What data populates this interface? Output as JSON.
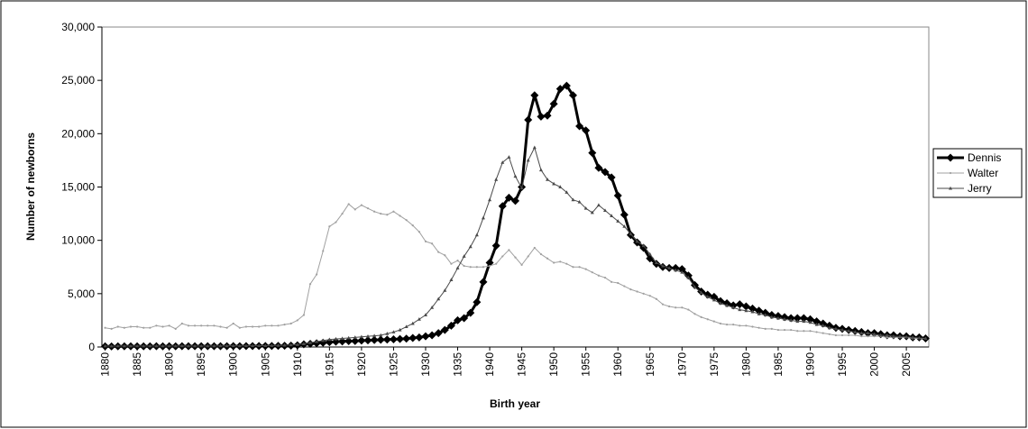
{
  "chart_data": {
    "type": "line",
    "x_label": "Birth year",
    "y_label": "Number of newborns",
    "x": [
      1880,
      1881,
      1882,
      1883,
      1884,
      1885,
      1886,
      1887,
      1888,
      1889,
      1890,
      1891,
      1892,
      1893,
      1894,
      1895,
      1896,
      1897,
      1898,
      1899,
      1900,
      1901,
      1902,
      1903,
      1904,
      1905,
      1906,
      1907,
      1908,
      1909,
      1910,
      1911,
      1912,
      1913,
      1914,
      1915,
      1916,
      1917,
      1918,
      1919,
      1920,
      1921,
      1922,
      1923,
      1924,
      1925,
      1926,
      1927,
      1928,
      1929,
      1930,
      1931,
      1932,
      1933,
      1934,
      1935,
      1936,
      1937,
      1938,
      1939,
      1940,
      1941,
      1942,
      1943,
      1944,
      1945,
      1946,
      1947,
      1948,
      1949,
      1950,
      1951,
      1952,
      1953,
      1954,
      1955,
      1956,
      1957,
      1958,
      1959,
      1960,
      1961,
      1962,
      1963,
      1964,
      1965,
      1966,
      1967,
      1968,
      1969,
      1970,
      1971,
      1972,
      1973,
      1974,
      1975,
      1976,
      1977,
      1978,
      1979,
      1980,
      1981,
      1982,
      1983,
      1984,
      1985,
      1986,
      1987,
      1988,
      1989,
      1990,
      1991,
      1992,
      1993,
      1994,
      1995,
      1996,
      1997,
      1998,
      1999,
      2000,
      2001,
      2002,
      2003,
      2004,
      2005,
      2006,
      2007,
      2008
    ],
    "xlim": [
      1879.5,
      2008.5
    ],
    "xticks": [
      1880,
      1885,
      1890,
      1895,
      1900,
      1905,
      1910,
      1915,
      1920,
      1925,
      1930,
      1935,
      1940,
      1945,
      1950,
      1955,
      1960,
      1965,
      1970,
      1975,
      1980,
      1985,
      1990,
      1995,
      2000,
      2005
    ],
    "ylim": [
      0,
      30000
    ],
    "yticks": [
      0,
      {
        "value": 5000,
        "label": "5,000"
      },
      {
        "value": 10000,
        "label": "10,000"
      },
      {
        "value": 15000,
        "label": "15,000"
      },
      {
        "value": 20000,
        "label": "20,000"
      },
      {
        "value": 25000,
        "label": "25,000"
      },
      {
        "value": 30000,
        "label": "30,000"
      }
    ],
    "grid": false,
    "legend": "right",
    "series": [
      {
        "name": "Dennis",
        "color": "#000000",
        "line_width": 3,
        "marker": "diamond",
        "values": [
          60,
          55,
          60,
          60,
          65,
          60,
          60,
          65,
          70,
          65,
          70,
          65,
          75,
          70,
          70,
          75,
          70,
          70,
          75,
          75,
          85,
          75,
          80,
          85,
          90,
          95,
          100,
          110,
          120,
          130,
          160,
          250,
          300,
          350,
          400,
          450,
          500,
          520,
          550,
          560,
          600,
          620,
          650,
          680,
          700,
          720,
          750,
          780,
          850,
          900,
          1000,
          1100,
          1300,
          1600,
          2000,
          2500,
          2700,
          3200,
          4200,
          6100,
          7900,
          9500,
          13200,
          14000,
          13700,
          15000,
          21300,
          23600,
          21600,
          21700,
          22800,
          24200,
          24500,
          23600,
          20700,
          20300,
          18200,
          16800,
          16400,
          15900,
          14200,
          12400,
          10500,
          9800,
          9300,
          8300,
          7800,
          7500,
          7400,
          7400,
          7300,
          6700,
          5800,
          5200,
          4900,
          4700,
          4300,
          4100,
          3900,
          4000,
          3800,
          3600,
          3400,
          3200,
          3000,
          2900,
          2800,
          2700,
          2700,
          2700,
          2600,
          2400,
          2200,
          2000,
          1800,
          1700,
          1600,
          1500,
          1400,
          1300,
          1300,
          1200,
          1100,
          1100,
          1000,
          1000,
          900,
          900,
          800
        ]
      },
      {
        "name": "Walter",
        "color": "#a0a0a0",
        "line_width": 1,
        "marker": "dot",
        "values": [
          1800,
          1700,
          1900,
          1800,
          1900,
          1900,
          1800,
          1800,
          2000,
          1900,
          2000,
          1700,
          2200,
          2000,
          2000,
          2000,
          2000,
          2000,
          1900,
          1800,
          2200,
          1800,
          1900,
          1900,
          1900,
          2000,
          2000,
          2000,
          2100,
          2200,
          2500,
          3000,
          5900,
          6800,
          9000,
          11300,
          11700,
          12500,
          13400,
          12900,
          13300,
          13000,
          12700,
          12500,
          12400,
          12700,
          12300,
          11900,
          11400,
          10800,
          9900,
          9700,
          8900,
          8600,
          7800,
          8100,
          7600,
          7500,
          7500,
          7500,
          7600,
          7800,
          8500,
          9100,
          8400,
          7700,
          8500,
          9300,
          8700,
          8300,
          7900,
          8000,
          7800,
          7500,
          7500,
          7300,
          7000,
          6700,
          6500,
          6100,
          6000,
          5700,
          5400,
          5200,
          5000,
          4800,
          4500,
          4000,
          3800,
          3700,
          3700,
          3500,
          3100,
          2800,
          2600,
          2400,
          2200,
          2100,
          2100,
          2000,
          2000,
          1900,
          1800,
          1700,
          1700,
          1600,
          1600,
          1600,
          1500,
          1500,
          1500,
          1400,
          1300,
          1200,
          1100,
          1100,
          1100,
          1100,
          1000,
          1000,
          1000,
          1000,
          900,
          900,
          900,
          900,
          800,
          800,
          800
        ]
      },
      {
        "name": "Jerry",
        "color": "#4a4a4a",
        "line_width": 1,
        "marker": "triangle",
        "values": [
          90,
          80,
          90,
          90,
          90,
          90,
          90,
          90,
          100,
          90,
          100,
          90,
          110,
          100,
          100,
          100,
          100,
          100,
          110,
          110,
          120,
          110,
          120,
          120,
          130,
          130,
          140,
          150,
          170,
          190,
          220,
          300,
          400,
          500,
          600,
          700,
          750,
          800,
          850,
          900,
          950,
          1000,
          1050,
          1100,
          1250,
          1400,
          1600,
          1900,
          2200,
          2600,
          3000,
          3700,
          4500,
          5300,
          6300,
          7400,
          8500,
          9400,
          10500,
          12100,
          13800,
          15700,
          17300,
          17800,
          16000,
          14900,
          17500,
          18700,
          16600,
          15700,
          15300,
          15000,
          14500,
          13800,
          13600,
          13000,
          12600,
          13300,
          12800,
          12300,
          11800,
          11300,
          10600,
          9900,
          9500,
          8700,
          7900,
          7600,
          7400,
          7200,
          7000,
          6500,
          5600,
          5100,
          4700,
          4400,
          4100,
          3900,
          3700,
          3500,
          3400,
          3300,
          3100,
          3000,
          2800,
          2700,
          2600,
          2500,
          2400,
          2400,
          2300,
          2100,
          2000,
          1800,
          1700,
          1600,
          1500,
          1400,
          1300,
          1300,
          1200,
          1100,
          1100,
          1000,
          1000,
          950,
          900,
          850,
          800
        ]
      }
    ]
  }
}
